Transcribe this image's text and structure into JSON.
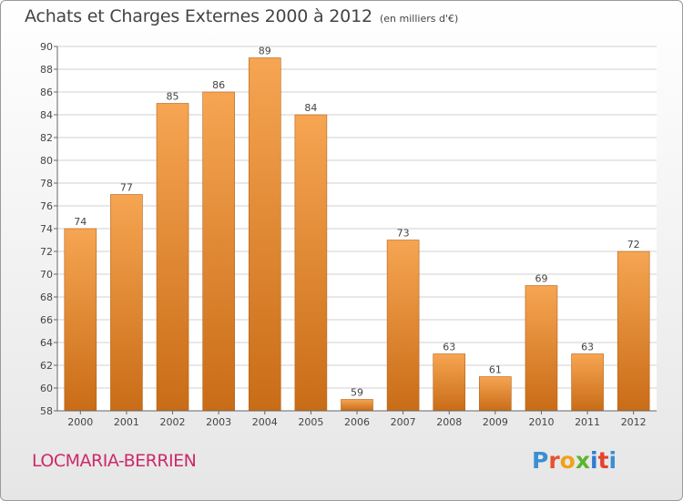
{
  "header": {
    "title": "Achats et Charges Externes 2000 à 2012",
    "subtitle": "(en milliers d'€)"
  },
  "footer": {
    "place": "LOCMARIA-BERRIEN",
    "brand": "Proxiti"
  },
  "colors": {
    "bar_light": "#f6a552",
    "bar_dark": "#c96c17",
    "place_text": "#cc2a6a",
    "grid": "#d2d2d2"
  },
  "chart_data": {
    "type": "bar",
    "title": "Achats et Charges Externes 2000 à 2012",
    "subtitle": "(en milliers d'€)",
    "categories": [
      "2000",
      "2001",
      "2002",
      "2003",
      "2004",
      "2005",
      "2006",
      "2007",
      "2008",
      "2009",
      "2010",
      "2011",
      "2012"
    ],
    "values": [
      74,
      77,
      85,
      86,
      89,
      84,
      59,
      73,
      63,
      61,
      69,
      63,
      72
    ],
    "ylim": [
      58,
      90
    ],
    "yticks": [
      58,
      60,
      62,
      64,
      66,
      68,
      70,
      72,
      74,
      76,
      78,
      80,
      82,
      84,
      86,
      88,
      90
    ],
    "grid": true,
    "data_labels": true,
    "xlabel": "",
    "ylabel": ""
  }
}
